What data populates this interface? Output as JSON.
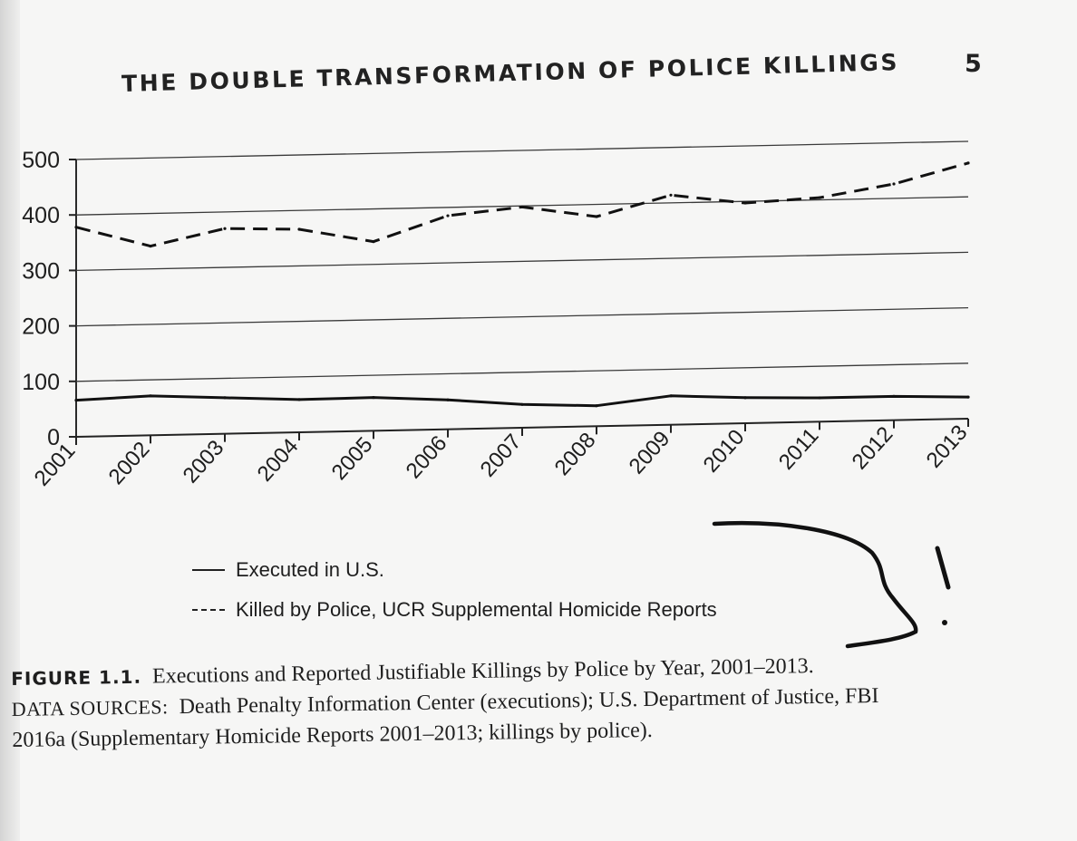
{
  "running_head": {
    "title": "THE DOUBLE TRANSFORMATION OF POLICE KILLINGS",
    "page_number": "5"
  },
  "chart_data": {
    "type": "line",
    "title": "",
    "xlabel": "",
    "ylabel": "",
    "categories": [
      "2001",
      "2002",
      "2003",
      "2004",
      "2005",
      "2006",
      "2007",
      "2008",
      "2009",
      "2010",
      "2011",
      "2012",
      "2013"
    ],
    "ylim": [
      0,
      500
    ],
    "yticks": [
      "0",
      "100",
      "200",
      "300",
      "400",
      "500"
    ],
    "grid": true,
    "legend_placement": "bottom",
    "series": [
      {
        "name": "Executed in U.S.",
        "style": "solid",
        "values": [
          66,
          71,
          65,
          59,
          60,
          53,
          42,
          37,
          52,
          46,
          43,
          43,
          39
        ]
      },
      {
        "name": "Killed by Police, UCR Supplemental Homicide Reports",
        "style": "dashed",
        "values": [
          378,
          341,
          370,
          366,
          341,
          385,
          398,
          378,
          414,
          397,
          404,
          426,
          461
        ]
      }
    ]
  },
  "figure_caption": {
    "label": "FIGURE 1.1.",
    "text": "Executions and Reported Justifiable Killings by Police by Year, 2001–2013.",
    "sources_label": "DATA SOURCES:",
    "sources_line1": "Death Penalty Information Center (executions); U.S. Department of Justice, FBI",
    "sources_line2": "2016a (Supplementary Homicide Reports 2001–2013; killings by police)."
  },
  "colors": {
    "ink": "#1e1e1e",
    "paper": "#f6f6f5",
    "grid": "#3a3a3a"
  }
}
